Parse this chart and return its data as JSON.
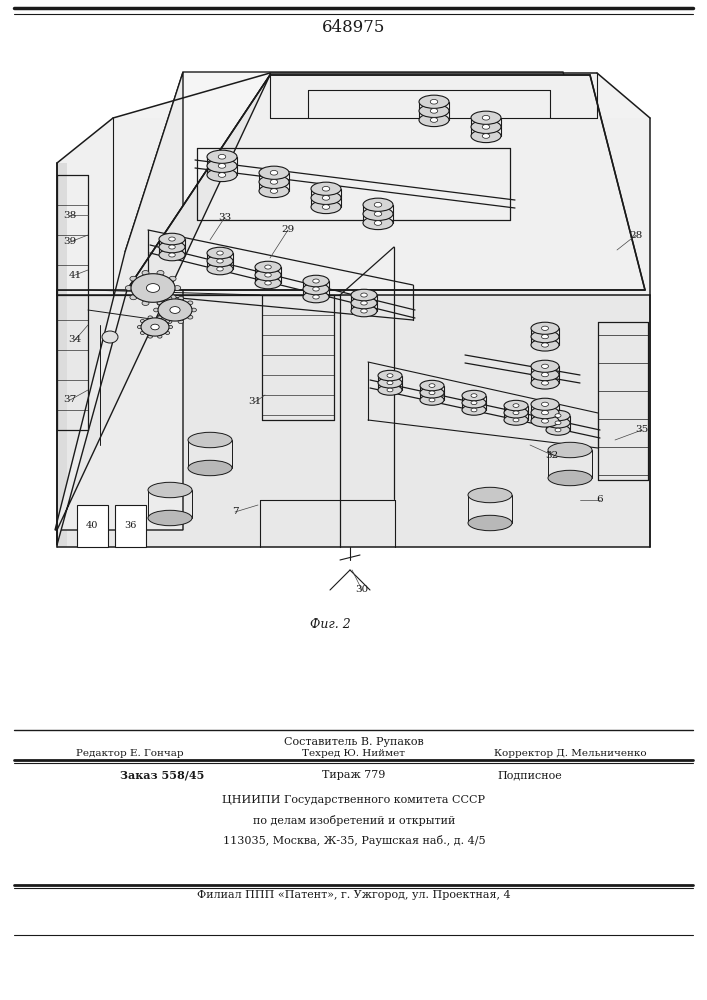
{
  "patent_number": "648975",
  "fig_caption": "Фиг. 2",
  "composit_line": "Составитель В. Рупаков",
  "editor_label": "Редактор Е. Гончар",
  "tech_label": "Техред Ю. Ниймет",
  "corr_label": "Корректор Д. Мельниченко",
  "order_label": "Заказ 558/45",
  "tirazh_label": "Тираж 779",
  "podp_label": "Подписное",
  "institute_line1": "ЦНИИПИ Государственного комитета СССР",
  "institute_line2": "по делам изобретений и открытий",
  "institute_line3": "113035, Москва, Ж-35, Раушская наб., д. 4/5",
  "filial_line": "Филиал ППП «Патент», г. Ужгород, ул. Проектная, 4",
  "bg_color": "#ffffff",
  "line_color": "#1a1a1a"
}
